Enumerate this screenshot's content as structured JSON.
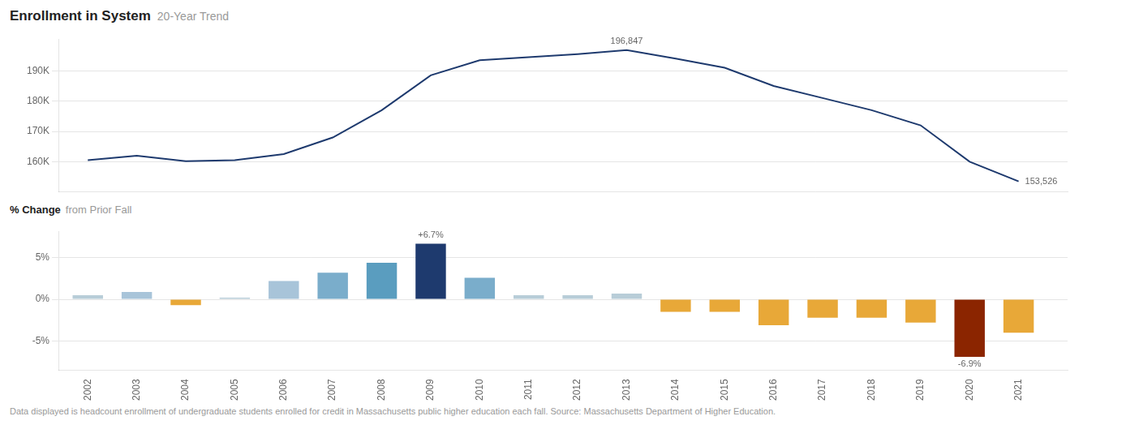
{
  "chart_data": [
    {
      "type": "line",
      "title": "Enrollment in System",
      "subtitle": "20-Year Trend",
      "x": [
        2002,
        2003,
        2004,
        2005,
        2006,
        2007,
        2008,
        2009,
        2010,
        2011,
        2012,
        2013,
        2014,
        2015,
        2016,
        2017,
        2018,
        2019,
        2020,
        2021
      ],
      "values": [
        160500,
        162000,
        160200,
        160500,
        162500,
        168000,
        177000,
        188500,
        193500,
        194500,
        195500,
        196847,
        194000,
        191000,
        185000,
        181000,
        177000,
        172000,
        160000,
        153526
      ],
      "color": "#1e3a6e",
      "xlim": [
        2001.4,
        2022.0
      ],
      "xticks": [
        2002,
        2003,
        2004,
        2005,
        2006,
        2007,
        2008,
        2009,
        2010,
        2011,
        2012,
        2013,
        2014,
        2015,
        2016,
        2017,
        2018,
        2019,
        2020,
        2021
      ],
      "ylim": [
        150000,
        200500
      ],
      "yticks": [
        {
          "value": 160000,
          "label": "160K"
        },
        {
          "value": 170000,
          "label": "170K"
        },
        {
          "value": 180000,
          "label": "180K"
        },
        {
          "value": 190000,
          "label": "190K"
        }
      ],
      "grid": true,
      "tick_labels": "y",
      "annotations": [
        {
          "text": "196,847",
          "x": 2013,
          "y": 196847
        },
        {
          "text": "153,526",
          "x": 2021,
          "y": 153526
        }
      ]
    },
    {
      "type": "bar",
      "title": "% Change",
      "subtitle": "from Prior Fall",
      "x": [
        2002,
        2003,
        2004,
        2005,
        2006,
        2007,
        2008,
        2009,
        2010,
        2011,
        2012,
        2013,
        2014,
        2015,
        2016,
        2017,
        2018,
        2019,
        2020,
        2021
      ],
      "values": [
        0.005,
        0.009,
        -0.007,
        0.002,
        0.022,
        0.032,
        0.044,
        0.067,
        0.026,
        0.005,
        0.005,
        0.007,
        -0.015,
        -0.015,
        -0.031,
        -0.022,
        -0.022,
        -0.028,
        -0.069,
        -0.04
      ],
      "colors": [
        "#b8cdd8",
        "#a8c4d9",
        "#e8a838",
        "#b8cdd8",
        "#a8c4d9",
        "#7aadcb",
        "#5a9dbf",
        "#1e3a6e",
        "#7aadcb",
        "#b8cdd8",
        "#b8cdd8",
        "#b8cdd8",
        "#e8a838",
        "#e8a838",
        "#e8a838",
        "#e8a838",
        "#e8a838",
        "#e8a838",
        "#8b2500",
        "#e8a838"
      ],
      "xlim": [
        2001.4,
        2022.0
      ],
      "xticks": [
        2002,
        2003,
        2004,
        2005,
        2006,
        2007,
        2008,
        2009,
        2010,
        2011,
        2012,
        2013,
        2014,
        2015,
        2016,
        2017,
        2018,
        2019,
        2020,
        2021
      ],
      "ylim": [
        -0.085,
        0.082
      ],
      "yticks": [
        {
          "value": -0.05,
          "label": "-5%"
        },
        {
          "value": 0,
          "label": "0%"
        },
        {
          "value": 0.05,
          "label": "5%"
        }
      ],
      "grid": true,
      "annotations": [
        {
          "text": "+6.7%",
          "x": 2009,
          "y": 0.067
        },
        {
          "text": "-6.9%",
          "x": 2020,
          "y": -0.069
        }
      ],
      "footnote": "Data displayed is headcount enrollment of undergraduate students enrolled for credit in Massachusetts public higher education each fall. Source: Massachusetts Department of Higher Education."
    }
  ]
}
